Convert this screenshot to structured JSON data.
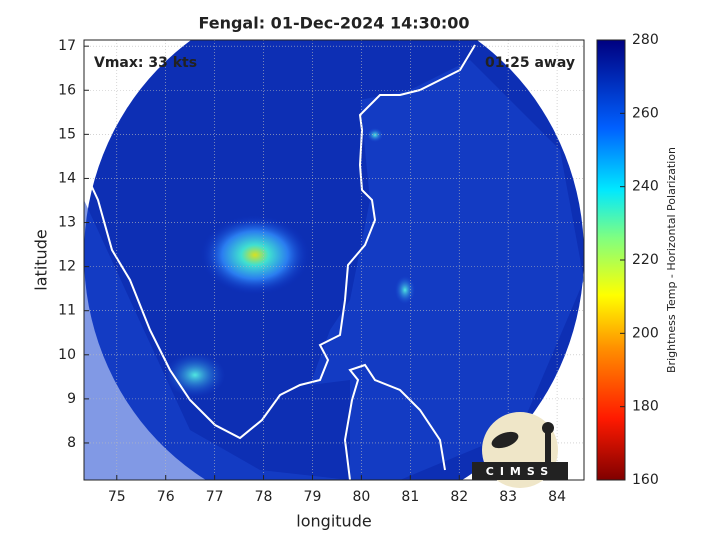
{
  "chart_data": {
    "type": "map",
    "title": "Fengal: 01-Dec-2024 14:30:00",
    "xlabel": "longitude",
    "ylabel": "latitude",
    "xlim": [
      74.33,
      84.55
    ],
    "xticks": [
      75,
      76,
      77,
      78,
      79,
      80,
      81,
      82,
      83,
      84
    ],
    "ylim": [
      7.16,
      17.14
    ],
    "yticks": [
      8,
      9,
      10,
      11,
      12,
      13,
      14,
      15,
      16,
      17
    ],
    "grid": true,
    "annotations": [
      "Vmax: 33 kts",
      "01:25 away"
    ],
    "colorbar": {
      "label": "Brightness Temp - Horizontal Polarization",
      "lim": [
        160,
        280
      ],
      "ticks": [
        160,
        180,
        200,
        220,
        240,
        260,
        280
      ]
    },
    "logo": "CIMSS"
  }
}
